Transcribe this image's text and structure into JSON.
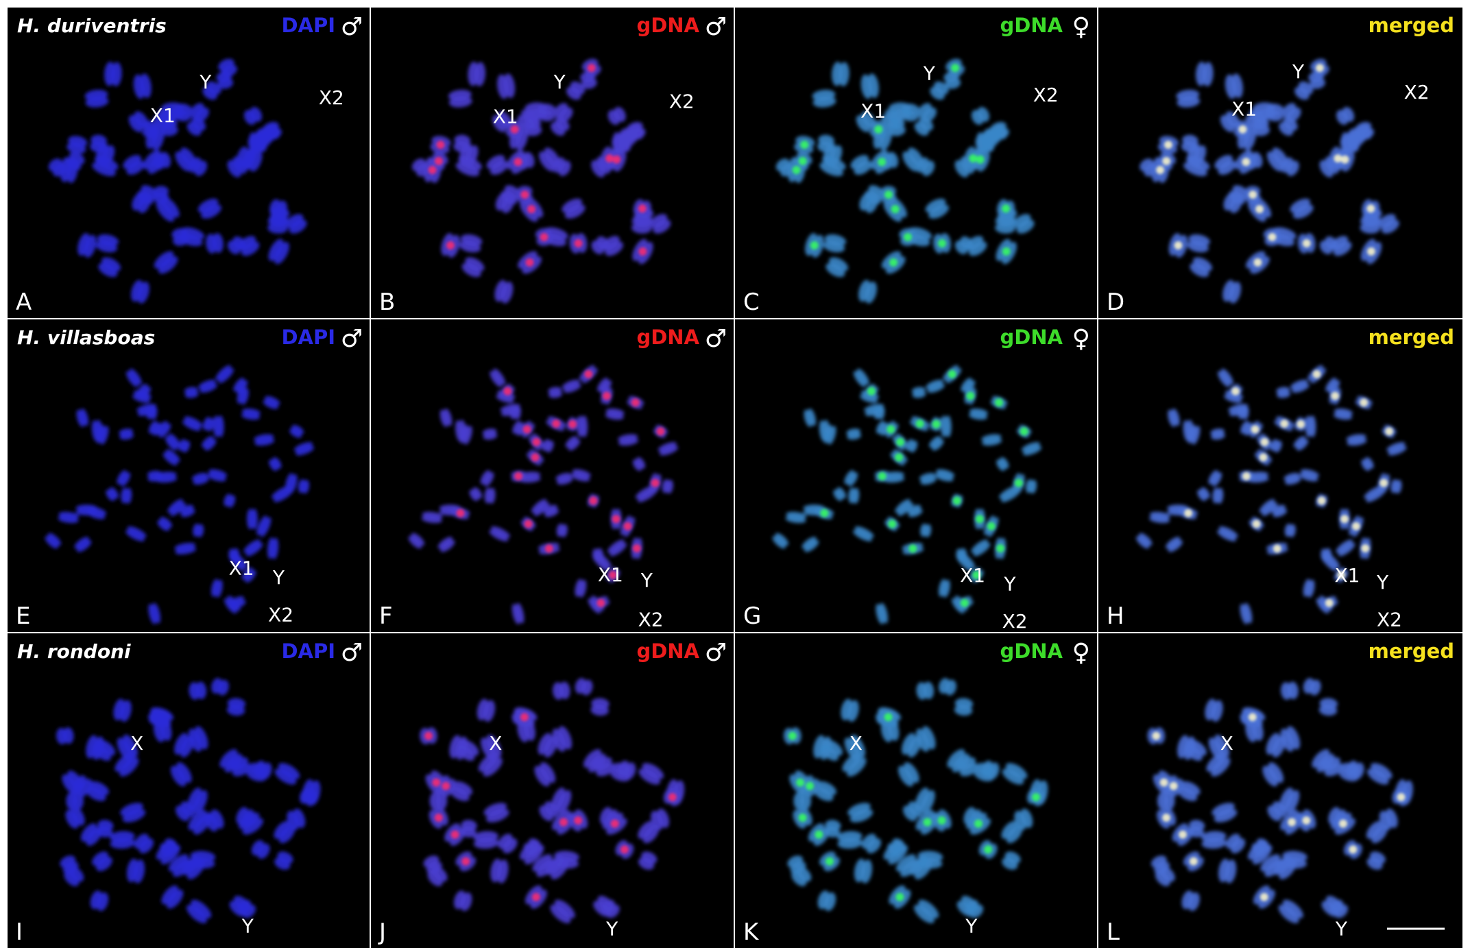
{
  "rows": [
    {
      "species": "H. duriventris",
      "panels": [
        {
          "letter": "A",
          "channel": "DAPI",
          "sex": "♂",
          "labels": [
            "Y",
            "X1",
            "X2"
          ]
        },
        {
          "letter": "B",
          "channel": "gDNA",
          "sex": "♂",
          "labels": [
            "Y",
            "X1",
            "X2"
          ]
        },
        {
          "letter": "C",
          "channel": "gDNA",
          "sex": "♀",
          "labels": [
            "Y",
            "X1",
            "X2"
          ]
        },
        {
          "letter": "D",
          "channel": "merged",
          "labels": [
            "Y",
            "X1",
            "X2"
          ]
        }
      ]
    },
    {
      "species": "H. villasboas",
      "panels": [
        {
          "letter": "E",
          "channel": "DAPI",
          "sex": "♂",
          "labels": [
            "X1",
            "Y",
            "X2"
          ]
        },
        {
          "letter": "F",
          "channel": "gDNA",
          "sex": "♂",
          "labels": [
            "X1",
            "Y",
            "X2"
          ]
        },
        {
          "letter": "G",
          "channel": "gDNA",
          "sex": "♀",
          "labels": [
            "X1",
            "Y",
            "X2"
          ]
        },
        {
          "letter": "H",
          "channel": "merged",
          "labels": [
            "X1",
            "Y",
            "X2"
          ]
        }
      ]
    },
    {
      "species": "H. rondoni",
      "panels": [
        {
          "letter": "I",
          "channel": "DAPI",
          "sex": "♂",
          "labels": [
            "X",
            "Y"
          ]
        },
        {
          "letter": "J",
          "channel": "gDNA",
          "sex": "♂",
          "labels": [
            "X",
            "Y"
          ]
        },
        {
          "letter": "K",
          "channel": "gDNA",
          "sex": "♀",
          "labels": [
            "X",
            "Y"
          ]
        },
        {
          "letter": "L",
          "channel": "merged",
          "labels": [
            "X",
            "Y"
          ]
        }
      ]
    }
  ]
}
